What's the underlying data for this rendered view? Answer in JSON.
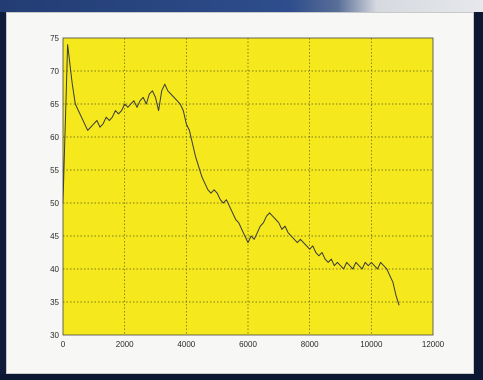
{
  "colors": {
    "plot_background": "#f5e81c",
    "line": "#3a3a3a",
    "grid": "#5a5a1a",
    "frame": "#f7f7f5",
    "backdrop": "#0e1b3a"
  },
  "chart_data": {
    "type": "line",
    "title": "",
    "xlabel": "",
    "ylabel": "",
    "xlim": [
      0,
      12000
    ],
    "ylim": [
      30,
      75
    ],
    "xticks": [
      0,
      2000,
      4000,
      6000,
      8000,
      10000,
      12000
    ],
    "yticks": [
      30,
      35,
      40,
      45,
      50,
      55,
      60,
      65,
      70,
      75
    ],
    "grid": true,
    "legend": "none",
    "series": [
      {
        "values_x": [
          0,
          50,
          100,
          150,
          200,
          250,
          300,
          400,
          500,
          600,
          700,
          800,
          900,
          1000,
          1100,
          1200,
          1300,
          1400,
          1500,
          1600,
          1700,
          1800,
          1900,
          2000,
          2100,
          2200,
          2300,
          2400,
          2500,
          2600,
          2700,
          2800,
          2900,
          3000,
          3100,
          3200,
          3300,
          3400,
          3500,
          3600,
          3700,
          3800,
          3900,
          4000,
          4100,
          4200,
          4300,
          4400,
          4500,
          4600,
          4700,
          4800,
          4900,
          5000,
          5100,
          5200,
          5300,
          5400,
          5500,
          5600,
          5700,
          5800,
          5900,
          6000,
          6100,
          6200,
          6300,
          6400,
          6500,
          6600,
          6700,
          6800,
          6900,
          7000,
          7100,
          7200,
          7300,
          7400,
          7500,
          7600,
          7700,
          7800,
          7900,
          8000,
          8100,
          8200,
          8300,
          8400,
          8500,
          8600,
          8700,
          8800,
          8900,
          9000,
          9100,
          9200,
          9300,
          9400,
          9500,
          9600,
          9700,
          9800,
          9900,
          10000,
          10100,
          10200,
          10300,
          10400,
          10500,
          10600,
          10700,
          10800,
          10900
        ],
        "values_y": [
          50,
          58,
          66,
          74,
          72,
          70,
          68,
          65,
          64,
          63,
          62,
          61,
          61.5,
          62,
          62.5,
          61.5,
          62,
          63,
          62.5,
          63,
          64,
          63.5,
          64,
          65,
          64.5,
          65,
          65.5,
          64.5,
          65.5,
          66,
          65,
          66.5,
          67,
          66,
          64,
          67,
          68,
          67,
          66.5,
          66,
          65.5,
          65,
          64,
          62,
          61,
          59,
          57,
          55.5,
          54,
          53,
          52,
          51.5,
          52,
          51.5,
          50.5,
          50,
          50.5,
          49.5,
          48.5,
          47.5,
          47,
          46,
          45,
          44,
          45,
          44.5,
          45.5,
          46.5,
          47,
          48,
          48.5,
          48,
          47.5,
          47,
          46,
          46.5,
          45.5,
          45,
          44.5,
          44,
          44.5,
          44,
          43.5,
          43,
          43.5,
          42.5,
          42,
          42.5,
          41.5,
          41,
          41.5,
          40.5,
          41,
          40.5,
          40,
          41,
          40.5,
          40,
          41,
          40.5,
          40,
          41,
          40.5,
          41,
          40.5,
          40,
          41,
          40.5,
          40,
          39,
          38,
          36,
          34.5
        ]
      }
    ]
  }
}
